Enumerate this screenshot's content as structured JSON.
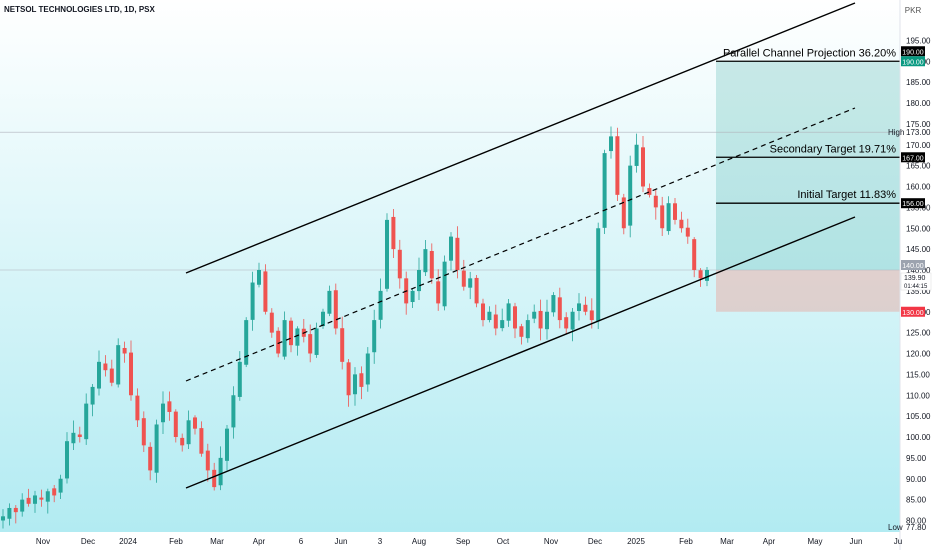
{
  "chart_data": {
    "type": "candlestick",
    "title": "NETSOL TECHNOLOGIES LTD, 1D, PSX",
    "currency": "PKR",
    "y_ticks": [
      "80.00",
      "85.00",
      "90.00",
      "95.00",
      "100.00",
      "105.00",
      "110.00",
      "115.00",
      "120.00",
      "125.00",
      "130.00",
      "135.00",
      "140.00",
      "145.00",
      "150.00",
      "155.00",
      "160.00",
      "165.00",
      "170.00",
      "175.00",
      "180.00",
      "185.00",
      "190.00",
      "195.00"
    ],
    "ylim": [
      77.5,
      199.5
    ],
    "x_ticks": [
      "Nov",
      "Dec",
      "2024",
      "Feb",
      "Mar",
      "Apr",
      "6",
      "Jun",
      "3",
      "Aug",
      "Sep",
      "Oct",
      "Nov",
      "Dec",
      "2025",
      "Feb",
      "Mar",
      "Apr",
      "May",
      "Jun",
      "Ju"
    ],
    "high_label": "High",
    "high_value": "173.00",
    "low_label": "Low",
    "low_value": "77.80",
    "last_price": "139.90",
    "countdown": "01:44:15",
    "badges": [
      "190.00",
      "190.00",
      "167.00",
      "156.00",
      "140.00",
      "130.00"
    ],
    "annotations": [
      {
        "text": "Parallel Channel Projection 36.20%",
        "y": 190.0
      },
      {
        "text": "Secondary Target 19.71%",
        "y": 167.0
      },
      {
        "text": "Initial Target 11.83%",
        "y": 156.0
      }
    ],
    "levels": {
      "entry": 140.0,
      "stop": 130.0,
      "target": 190.0
    },
    "channel": {
      "lower": [
        [
          "Feb-2024",
          88
        ],
        [
          "Jun-2025",
          153
        ]
      ],
      "upper": [
        [
          "Feb-2024",
          139
        ],
        [
          "Jun-2025",
          198
        ]
      ],
      "mid": [
        [
          "Feb-2024",
          113
        ],
        [
          "Jun-2025",
          177
        ]
      ]
    },
    "colors": {
      "up": "#26a69a",
      "down": "#ef5350",
      "gradient_top": "#ffffff",
      "gradient_bottom": "#b2ebf2",
      "profit_zone": "#26a69a",
      "loss_zone": "#f28b82"
    },
    "closes": [
      81,
      83,
      82,
      85,
      84,
      86,
      85,
      87,
      86,
      90,
      99,
      101,
      100,
      108,
      112,
      118,
      116,
      113,
      122,
      120,
      110,
      104,
      98,
      92,
      103,
      108,
      106,
      100,
      98,
      104,
      102,
      96,
      92,
      88,
      95,
      102,
      110,
      118,
      128,
      137,
      140,
      130,
      125,
      120,
      128,
      122,
      126,
      124,
      120,
      126,
      130,
      135,
      126,
      118,
      110,
      115,
      112,
      120,
      128,
      135,
      152,
      145,
      138,
      132,
      135,
      140,
      145,
      138,
      132,
      142,
      148,
      140,
      136,
      138,
      132,
      128,
      130,
      126,
      128,
      132,
      126,
      124,
      128,
      130,
      126,
      130,
      134,
      128,
      126,
      130,
      132,
      130,
      128,
      150,
      168,
      172,
      158,
      150,
      165,
      170,
      160,
      158,
      155,
      150,
      156,
      152,
      150,
      148,
      140,
      138,
      140
    ]
  }
}
